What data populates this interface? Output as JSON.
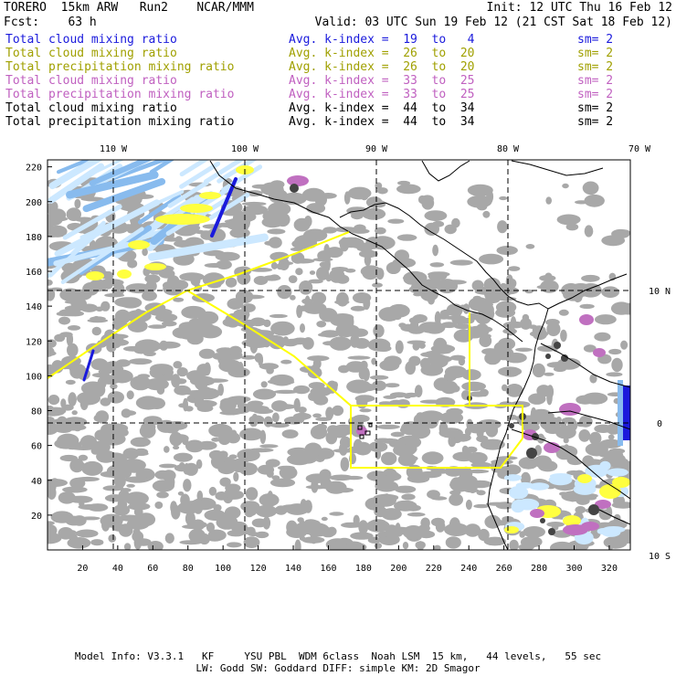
{
  "header": {
    "line1_left": "TORERO  15km ARW   Run2    NCAR/MMM",
    "line1_right": "Init: 12 UTC Thu 16 Feb 12",
    "line2_left": "Fcst:    63 h",
    "line2_right": "Valid: 03 UTC Sun 19 Feb 12 (21 CST Sat 18 Feb 12)"
  },
  "legend": [
    {
      "field": "Total cloud mixing ratio",
      "index": "Avg. k-index =  19  to   4",
      "sm": "sm= 2",
      "color": "#1a1adc"
    },
    {
      "field": "Total cloud mixing ratio",
      "index": "Avg. k-index =  26  to  20",
      "sm": "sm= 2",
      "color": "#a0a000"
    },
    {
      "field": "Total precipitation mixing ratio",
      "index": "Avg. k-index =  26  to  20",
      "sm": "sm= 2",
      "color": "#a0a000"
    },
    {
      "field": "Total cloud mixing ratio",
      "index": "Avg. k-index =  33  to  25",
      "sm": "sm= 2",
      "color": "#c060c0"
    },
    {
      "field": "Total precipitation mixing ratio",
      "index": "Avg. k-index =  33  to  25",
      "sm": "sm= 2",
      "color": "#c060c0"
    },
    {
      "field": "Total cloud mixing ratio",
      "index": "Avg. k-index =  44  to  34",
      "sm": "sm= 2",
      "color": "#000000"
    },
    {
      "field": "Total precipitation mixing ratio",
      "index": "Avg. k-index =  44  to  34",
      "sm": "sm= 2",
      "color": "#000000"
    }
  ],
  "map": {
    "x_ticks": [
      "20",
      "40",
      "60",
      "80",
      "100",
      "120",
      "140",
      "160",
      "180",
      "200",
      "220",
      "240",
      "260",
      "280",
      "300",
      "320"
    ],
    "y_ticks": [
      "20",
      "40",
      "60",
      "80",
      "100",
      "120",
      "140",
      "160",
      "180",
      "200",
      "220"
    ],
    "lon_labels": [
      "110 W",
      "100 W",
      "90 W",
      "80 W",
      "70 W"
    ],
    "lat_labels": [
      "10 N",
      "0",
      "10 S"
    ],
    "colors": {
      "cloud_gray": "#a8a8a8",
      "light_blue": "#cce8ff",
      "mid_blue": "#88bbee",
      "dark_blue": "#1a1adc",
      "yellow": "#ffff40",
      "purple": "#c070c0",
      "dark_gray": "#444444",
      "boundary": "#ffff00"
    }
  },
  "footer": {
    "line1": "Model Info: V3.3.1   KF     YSU PBL  WDM 6class  Noah LSM  15 km,   44 levels,   55 sec",
    "line2": "LW: Godd SW: Goddard DIFF: simple KM: 2D Smagor"
  }
}
